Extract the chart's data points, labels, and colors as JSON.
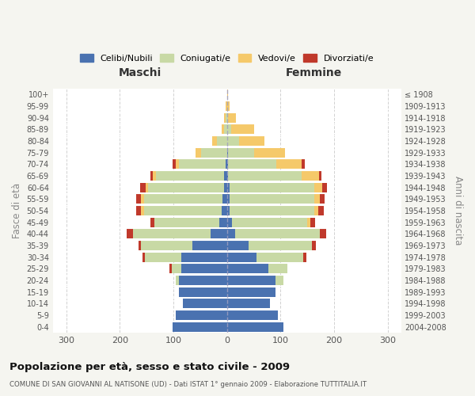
{
  "age_groups": [
    "100+",
    "95-99",
    "90-94",
    "85-89",
    "80-84",
    "75-79",
    "70-74",
    "65-69",
    "60-64",
    "55-59",
    "50-54",
    "45-49",
    "40-44",
    "35-39",
    "30-34",
    "25-29",
    "20-24",
    "15-19",
    "10-14",
    "5-9",
    "0-4"
  ],
  "birth_years": [
    "≤ 1908",
    "1909-1913",
    "1914-1918",
    "1919-1923",
    "1924-1928",
    "1929-1933",
    "1934-1938",
    "1939-1943",
    "1944-1948",
    "1949-1953",
    "1954-1958",
    "1959-1963",
    "1964-1968",
    "1969-1973",
    "1974-1978",
    "1979-1983",
    "1984-1988",
    "1989-1993",
    "1994-1998",
    "1999-2003",
    "2004-2008"
  ],
  "maschi_celibi": [
    0,
    0,
    0,
    0,
    0,
    0,
    2,
    5,
    5,
    8,
    10,
    15,
    30,
    65,
    85,
    85,
    90,
    90,
    82,
    95,
    102
  ],
  "maschi_coniugati": [
    0,
    0,
    2,
    5,
    18,
    48,
    88,
    128,
    142,
    147,
    145,
    120,
    145,
    95,
    68,
    18,
    5,
    0,
    0,
    0,
    0
  ],
  "maschi_vedovi": [
    0,
    2,
    3,
    5,
    10,
    10,
    6,
    5,
    5,
    5,
    5,
    0,
    0,
    0,
    0,
    0,
    0,
    0,
    0,
    0,
    0
  ],
  "maschi_divorziati": [
    0,
    0,
    0,
    0,
    0,
    0,
    5,
    5,
    10,
    10,
    10,
    8,
    12,
    5,
    5,
    5,
    0,
    0,
    0,
    0,
    0
  ],
  "femmine_celibi": [
    0,
    0,
    0,
    0,
    0,
    2,
    2,
    2,
    5,
    5,
    5,
    10,
    15,
    40,
    55,
    78,
    90,
    90,
    80,
    95,
    105
  ],
  "femmine_coniugati": [
    0,
    0,
    2,
    8,
    22,
    48,
    90,
    138,
    158,
    158,
    158,
    140,
    158,
    118,
    88,
    35,
    15,
    0,
    0,
    0,
    0
  ],
  "femmine_vedovi": [
    2,
    5,
    15,
    42,
    48,
    58,
    48,
    32,
    15,
    10,
    8,
    5,
    0,
    0,
    0,
    0,
    0,
    0,
    0,
    0,
    0
  ],
  "femmine_divorziati": [
    0,
    0,
    0,
    0,
    0,
    0,
    5,
    5,
    8,
    10,
    10,
    10,
    12,
    8,
    5,
    0,
    0,
    0,
    0,
    0,
    0
  ],
  "colors": {
    "celibi": "#4a72b0",
    "coniugati": "#c8d9a5",
    "vedovi": "#f5c96a",
    "divorziati": "#c0392b"
  },
  "legend_labels": [
    "Celibi/Nubili",
    "Coniugati/e",
    "Vedovi/e",
    "Divorziati/e"
  ],
  "title": "Popolazione per età, sesso e stato civile - 2009",
  "subtitle": "COMUNE DI SAN GIOVANNI AL NATISONE (UD) - Dati ISTAT 1° gennaio 2009 - Elaborazione TUTTITALIA.IT",
  "maschi_label": "Maschi",
  "femmine_label": "Femmine",
  "fasce_label": "Fasce di età",
  "anni_label": "Anni di nascita",
  "xlim": 325,
  "bg_color": "#f5f5f0",
  "plot_bg": "#ffffff",
  "grid_color": "#cccccc"
}
